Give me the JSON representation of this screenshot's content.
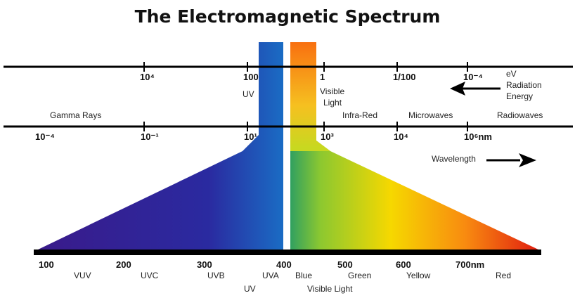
{
  "title": "The Electromagnetic Spectrum",
  "energy_axis": {
    "unit_label": [
      "eV",
      "Radiation",
      "Energy"
    ],
    "ticks": [
      "10⁴",
      "100",
      "1",
      "1/100",
      "10⁻⁴"
    ]
  },
  "wavelength_axis": {
    "ticks": [
      "10⁻⁴",
      "10⁻¹",
      "10¹",
      "10³",
      "10⁴",
      "10⁶nm"
    ],
    "label": "Wavelength"
  },
  "regions": [
    "Gamma Rays",
    "UV",
    "Visible",
    "Light",
    "Infra-Red",
    "Microwaves",
    "Radiowaves"
  ],
  "detail_axis": {
    "ticks": [
      "100",
      "200",
      "300",
      "400",
      "500",
      "600",
      "700nm"
    ],
    "bands": [
      "VUV",
      "UVC",
      "UVB",
      "UVA",
      "Blue",
      "Green",
      "Yellow",
      "Red"
    ],
    "groups": [
      "UV",
      "Visible Light"
    ]
  },
  "colors": {
    "uv": "#2a1a8c",
    "blue": "#1a6cc4",
    "green": "#4cb040",
    "yellow": "#f6d800",
    "orange": "#f88a10",
    "red": "#e01a10"
  }
}
